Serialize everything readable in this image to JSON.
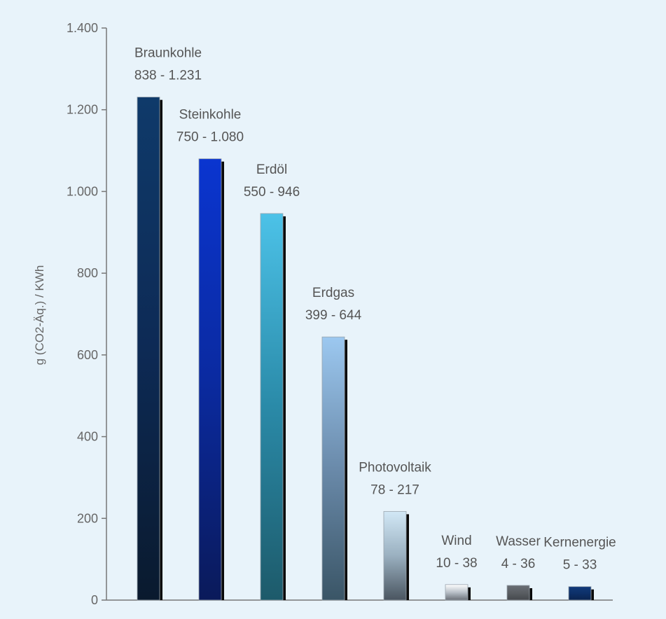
{
  "chart_data": {
    "type": "bar",
    "title": "",
    "xlabel": "",
    "ylabel": "g (CO2-Äq.) / KWh",
    "ylim": [
      0,
      1400
    ],
    "yticks": [
      0,
      200,
      400,
      600,
      800,
      1000,
      1200,
      1400
    ],
    "ytick_labels": [
      "0",
      "200",
      "400",
      "600",
      "800",
      "1.000",
      "1.200",
      "1.400"
    ],
    "grid": false,
    "legend": "none",
    "categories": [
      "Braunkohle",
      "Steinkohle",
      "Erdöl",
      "Erdgas",
      "Photovoltaik",
      "Wind",
      "Wasser",
      "Kernenergie"
    ],
    "values": [
      1231,
      1080,
      946,
      644,
      217,
      38,
      36,
      33
    ],
    "ranges": [
      [
        838,
        1231
      ],
      [
        750,
        1080
      ],
      [
        550,
        946
      ],
      [
        399,
        644
      ],
      [
        78,
        217
      ],
      [
        10,
        38
      ],
      [
        4,
        36
      ],
      [
        5,
        33
      ]
    ],
    "range_labels": [
      "838 - 1.231",
      "750 - 1.080",
      "550 - 946",
      "399 - 644",
      "78 - 217",
      "10 - 38",
      "4 - 36",
      "5 - 33"
    ],
    "colors": [
      [
        "#0a1a2e",
        "#0d2a55",
        "#0f3a6a"
      ],
      [
        "#0a1a5a",
        "#0a2aa0",
        "#0a35d0"
      ],
      [
        "#1d5a6a",
        "#2a8aa8",
        "#4cc2e8"
      ],
      [
        "#3a5566",
        "#6a8aaa",
        "#9cc8f0"
      ],
      [
        "#4a5560",
        "#9ab0c0",
        "#d2e8f6"
      ],
      [
        "#6a7078",
        "#b8c0c8",
        "#ffffff"
      ],
      [
        "#45484c",
        "#5a5e63",
        "#6a6e74"
      ],
      [
        "#0a2450",
        "#0d3068",
        "#123a7a"
      ]
    ]
  }
}
